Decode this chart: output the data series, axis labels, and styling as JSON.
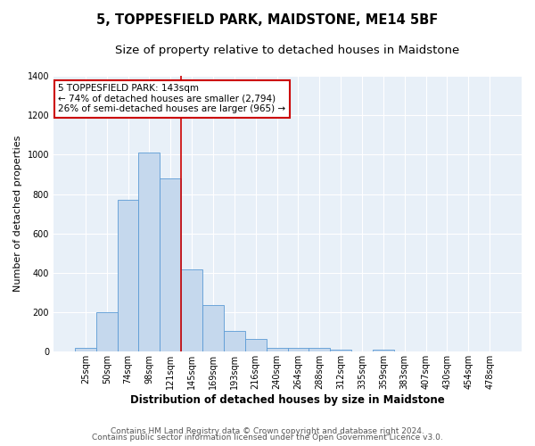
{
  "title": "5, TOPPESFIELD PARK, MAIDSTONE, ME14 5BF",
  "subtitle": "Size of property relative to detached houses in Maidstone",
  "xlabel": "Distribution of detached houses by size in Maidstone",
  "ylabel": "Number of detached properties",
  "categories": [
    "25sqm",
    "50sqm",
    "74sqm",
    "98sqm",
    "121sqm",
    "145sqm",
    "169sqm",
    "193sqm",
    "216sqm",
    "240sqm",
    "264sqm",
    "288sqm",
    "312sqm",
    "335sqm",
    "359sqm",
    "383sqm",
    "407sqm",
    "430sqm",
    "454sqm",
    "478sqm"
  ],
  "bar_heights": [
    20,
    200,
    770,
    1010,
    880,
    420,
    235,
    105,
    65,
    20,
    20,
    20,
    10,
    0,
    10,
    0,
    0,
    0,
    0,
    0
  ],
  "bar_color": "#c5d8ed",
  "bar_edge_color": "#5b9bd5",
  "vline_color": "#cc0000",
  "annotation_text": "5 TOPPESFIELD PARK: 143sqm\n← 74% of detached houses are smaller (2,794)\n26% of semi-detached houses are larger (965) →",
  "annotation_box_color": "#ffffff",
  "annotation_box_edge": "#cc0000",
  "ylim": [
    0,
    1400
  ],
  "yticks": [
    0,
    200,
    400,
    600,
    800,
    1000,
    1200,
    1400
  ],
  "footer1": "Contains HM Land Registry data © Crown copyright and database right 2024.",
  "footer2": "Contains public sector information licensed under the Open Government Licence v3.0.",
  "bg_color": "#ffffff",
  "plot_bg": "#e8f0f8",
  "grid_color": "#ffffff",
  "title_fontsize": 10.5,
  "subtitle_fontsize": 9.5,
  "xlabel_fontsize": 8.5,
  "ylabel_fontsize": 8,
  "tick_fontsize": 7,
  "footer_fontsize": 6.5,
  "annotation_fontsize": 7.5
}
